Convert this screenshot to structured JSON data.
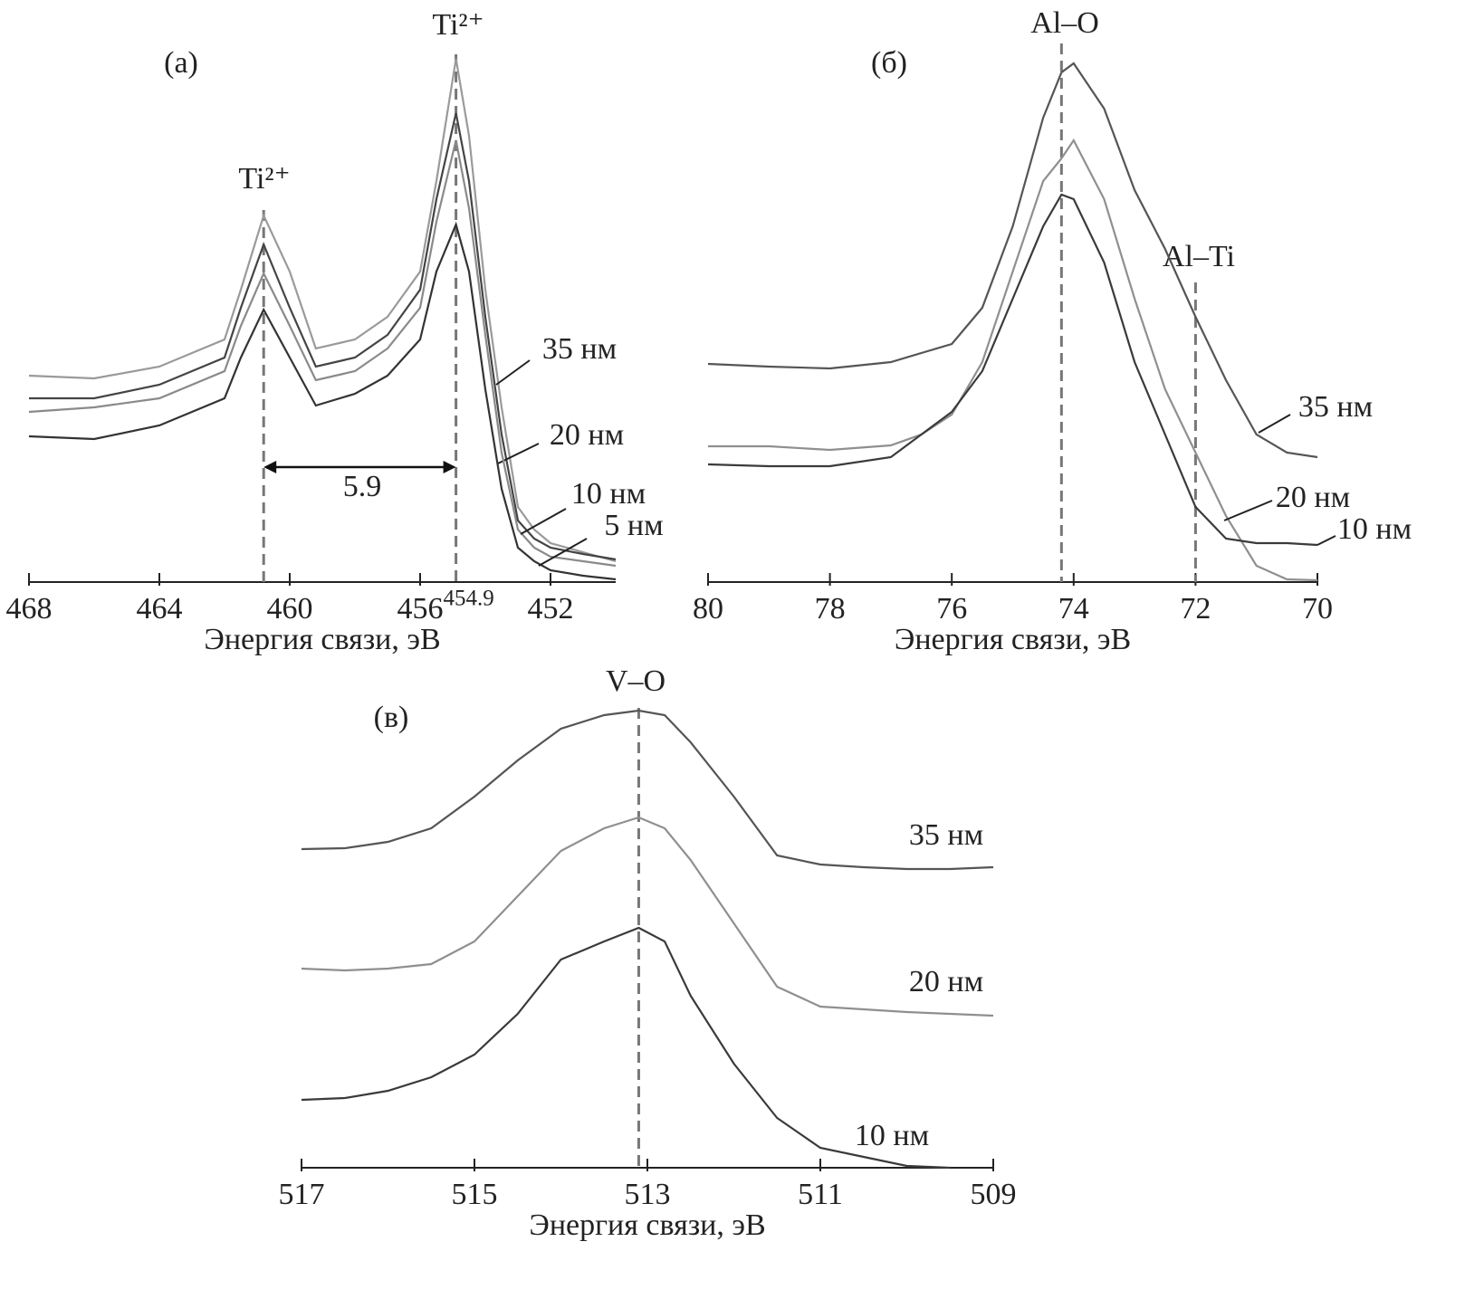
{
  "chart_data": [
    {
      "type": "line",
      "panel_label": "(а)",
      "x_label": "Энергия связи, эВ",
      "x": [
        468,
        466,
        464,
        462,
        461.5,
        460.8,
        460,
        459.2,
        458,
        457,
        456,
        455.5,
        454.9,
        454.5,
        454,
        453.5,
        453,
        452.5,
        452,
        451,
        450
      ],
      "xlim": [
        468,
        450
      ],
      "xticks": [
        468,
        464,
        460,
        456,
        452
      ],
      "ylim": [
        0,
        60
      ],
      "markers": [
        {
          "x": 460.8,
          "label": "Ti²⁺"
        },
        {
          "x": 454.9,
          "label": "Ti²⁺"
        }
      ],
      "spacing_label": "5.9",
      "series": [
        {
          "name": "35 нм",
          "color": "#9a9a9a",
          "values": [
            22.8,
            22.5,
            23.8,
            26.8,
            32.3,
            40.5,
            34.3,
            25.8,
            26.8,
            29.3,
            34.3,
            44.3,
            57.8,
            49.3,
            32.3,
            19.3,
            8.3,
            5.8,
            4.3,
            3.3,
            2.3
          ]
        },
        {
          "name": "20 нм",
          "color": "#444444",
          "values": [
            20.3,
            20.3,
            21.8,
            24.8,
            30.3,
            37.3,
            30.3,
            23.8,
            24.8,
            27.3,
            32.3,
            42.3,
            51.8,
            44.3,
            29.3,
            16.3,
            6.8,
            4.8,
            3.8,
            3.1,
            2.5
          ]
        },
        {
          "name": "10 нм",
          "color": "#8a8a8a",
          "values": [
            18.8,
            19.3,
            20.3,
            23.3,
            28.3,
            34.1,
            28.3,
            22.3,
            23.3,
            25.8,
            30.3,
            39.8,
            48.8,
            41.3,
            27.3,
            14.3,
            5.8,
            3.8,
            2.8,
            2.3,
            1.8
          ]
        },
        {
          "name": "5 нм",
          "color": "#333333",
          "values": [
            16.1,
            15.8,
            17.3,
            20.3,
            24.8,
            30.1,
            24.8,
            19.5,
            20.8,
            22.8,
            26.8,
            34.3,
            39.5,
            34.3,
            21.3,
            10.3,
            3.8,
            2.3,
            1.3,
            0.7,
            0.3
          ]
        }
      ]
    },
    {
      "type": "line",
      "panel_label": "(б)",
      "x_label": "Энергия связи, эВ",
      "x": [
        80,
        79,
        78,
        77,
        76.5,
        76,
        75.5,
        75,
        74.5,
        74.2,
        74,
        73.5,
        73,
        72.5,
        72,
        71.5,
        71,
        70.5,
        70
      ],
      "xlim": [
        80,
        70
      ],
      "xticks": [
        80,
        78,
        76,
        74,
        72,
        70
      ],
      "ylim": [
        0,
        60
      ],
      "markers": [
        {
          "x": 74.2,
          "label": "Al–O"
        },
        {
          "x": 72,
          "label": "Al–Ti"
        }
      ],
      "series": [
        {
          "name": "35 нм",
          "color": "#555555",
          "values": [
            24.1,
            23.8,
            23.6,
            24.3,
            25.3,
            26.3,
            30.3,
            39.3,
            51.3,
            56.3,
            57.3,
            52.3,
            43.3,
            36.8,
            29.3,
            22.3,
            16.3,
            14.3,
            13.8
          ]
        },
        {
          "name": "20 нм",
          "color": "#8f8f8f",
          "values": [
            15.0,
            15.0,
            14.6,
            15.1,
            16.3,
            18.5,
            24.3,
            34.3,
            44.3,
            46.8,
            48.8,
            42.3,
            31.3,
            21.3,
            14.3,
            7.3,
            1.8,
            0.3,
            0.2
          ]
        },
        {
          "name": "10 нм",
          "color": "#3a3a3a",
          "values": [
            13.0,
            12.8,
            12.8,
            13.8,
            16.3,
            18.8,
            23.3,
            31.3,
            39.3,
            42.8,
            42.3,
            35.3,
            24.3,
            16.3,
            8.3,
            4.8,
            4.3,
            4.3,
            4.1
          ]
        }
      ]
    },
    {
      "type": "line",
      "panel_label": "(в)",
      "x_label": "Энергия связи, эВ",
      "x": [
        517,
        516.5,
        516,
        515.5,
        515,
        514.5,
        514,
        513.5,
        513.1,
        512.8,
        512.5,
        512,
        511.5,
        511,
        510.5,
        510,
        509.5,
        509
      ],
      "xlim": [
        517,
        509
      ],
      "xticks": [
        517,
        515,
        513,
        511,
        509
      ],
      "ylim": [
        0,
        60
      ],
      "markers": [
        {
          "x": 513.1,
          "label": "V–O"
        }
      ],
      "series": [
        {
          "name": "35 нм",
          "color": "#555555",
          "values": [
            35.2,
            35.3,
            36.0,
            37.5,
            41.0,
            45.0,
            48.5,
            50.0,
            50.5,
            50.0,
            47.0,
            41.0,
            34.5,
            33.5,
            33.2,
            33.0,
            33.0,
            33.2
          ]
        },
        {
          "name": "20 нм",
          "color": "#8f8f8f",
          "values": [
            22.0,
            21.8,
            22.0,
            22.5,
            25.0,
            30.0,
            35.0,
            37.5,
            38.7,
            37.5,
            34.0,
            27.0,
            20.0,
            17.8,
            17.5,
            17.2,
            17.0,
            16.8
          ]
        },
        {
          "name": "10 нм",
          "color": "#3a3a3a",
          "values": [
            7.5,
            7.7,
            8.5,
            10.0,
            12.5,
            17.0,
            23.0,
            25.0,
            26.5,
            25.0,
            19.0,
            11.5,
            5.5,
            2.2,
            1.2,
            0.2,
            0.0,
            null
          ]
        }
      ]
    }
  ]
}
